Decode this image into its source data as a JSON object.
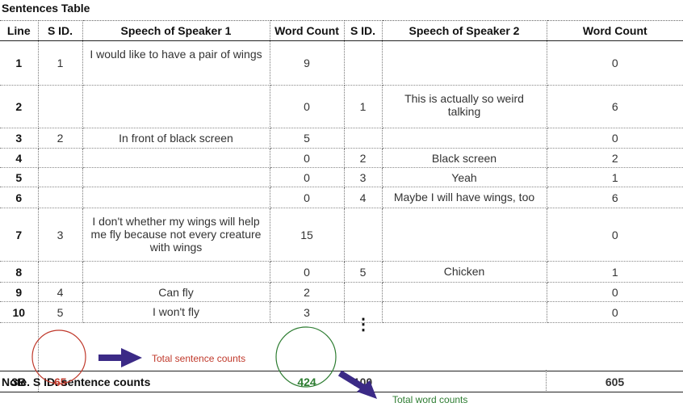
{
  "title": "Sentences Table",
  "headers": {
    "line": "Line",
    "sid1": "S ID.",
    "speech1": "Speech of Speaker 1",
    "wc1": "Word Count",
    "sid2": "S ID.",
    "speech2": "Speech of Speaker 2",
    "wc2": "Word Count"
  },
  "rows": [
    {
      "line": "1",
      "sid1": "1",
      "speech1": "I would like to have a pair of wings",
      "wc1": "9",
      "sid2": "",
      "speech2": "",
      "wc2": "0"
    },
    {
      "line": "2",
      "sid1": "",
      "speech1": "",
      "wc1": "0",
      "sid2": "1",
      "speech2": "This is actually so weird talking",
      "wc2": "6"
    },
    {
      "line": "3",
      "sid1": "2",
      "speech1": "In front of black screen",
      "wc1": "5",
      "sid2": "",
      "speech2": "",
      "wc2": "0"
    },
    {
      "line": "4",
      "sid1": "",
      "speech1": "",
      "wc1": "0",
      "sid2": "2",
      "speech2": "Black screen",
      "wc2": "2"
    },
    {
      "line": "5",
      "sid1": "",
      "speech1": "",
      "wc1": "0",
      "sid2": "3",
      "speech2": "Yeah",
      "wc2": "1"
    },
    {
      "line": "6",
      "sid1": "",
      "speech1": "",
      "wc1": "0",
      "sid2": "4",
      "speech2": "Maybe I will have wings, too",
      "wc2": "6"
    },
    {
      "line": "7",
      "sid1": "3",
      "speech1": "I don't whether my wings will help me fly because not every creature with wings",
      "wc1": "15",
      "sid2": "",
      "speech2": "",
      "wc2": "0"
    },
    {
      "line": "8",
      "sid1": "",
      "speech1": "",
      "wc1": "0",
      "sid2": "5",
      "speech2": "Chicken",
      "wc2": "1"
    },
    {
      "line": "9",
      "sid1": "4",
      "speech1": "Can fly",
      "wc1": "2",
      "sid2": "",
      "speech2": "",
      "wc2": "0"
    },
    {
      "line": "10",
      "sid1": "5",
      "speech1": "I won't fly",
      "wc1": "3",
      "sid2": "",
      "speech2": "",
      "wc2": "0"
    }
  ],
  "ellipsis": "⋮",
  "totals": {
    "line": "3B",
    "sid1": "65",
    "wc1": "424",
    "sid2": "100",
    "wc2": "605"
  },
  "annotations": {
    "total_sentence_label": "Total sentence counts",
    "total_word_label": "Total word counts"
  },
  "note": "Note. S ID. sentence counts",
  "colors": {
    "sentence_circle": "#c0392b",
    "word_circle": "#2e7d32",
    "arrow": "#3b2a86"
  }
}
